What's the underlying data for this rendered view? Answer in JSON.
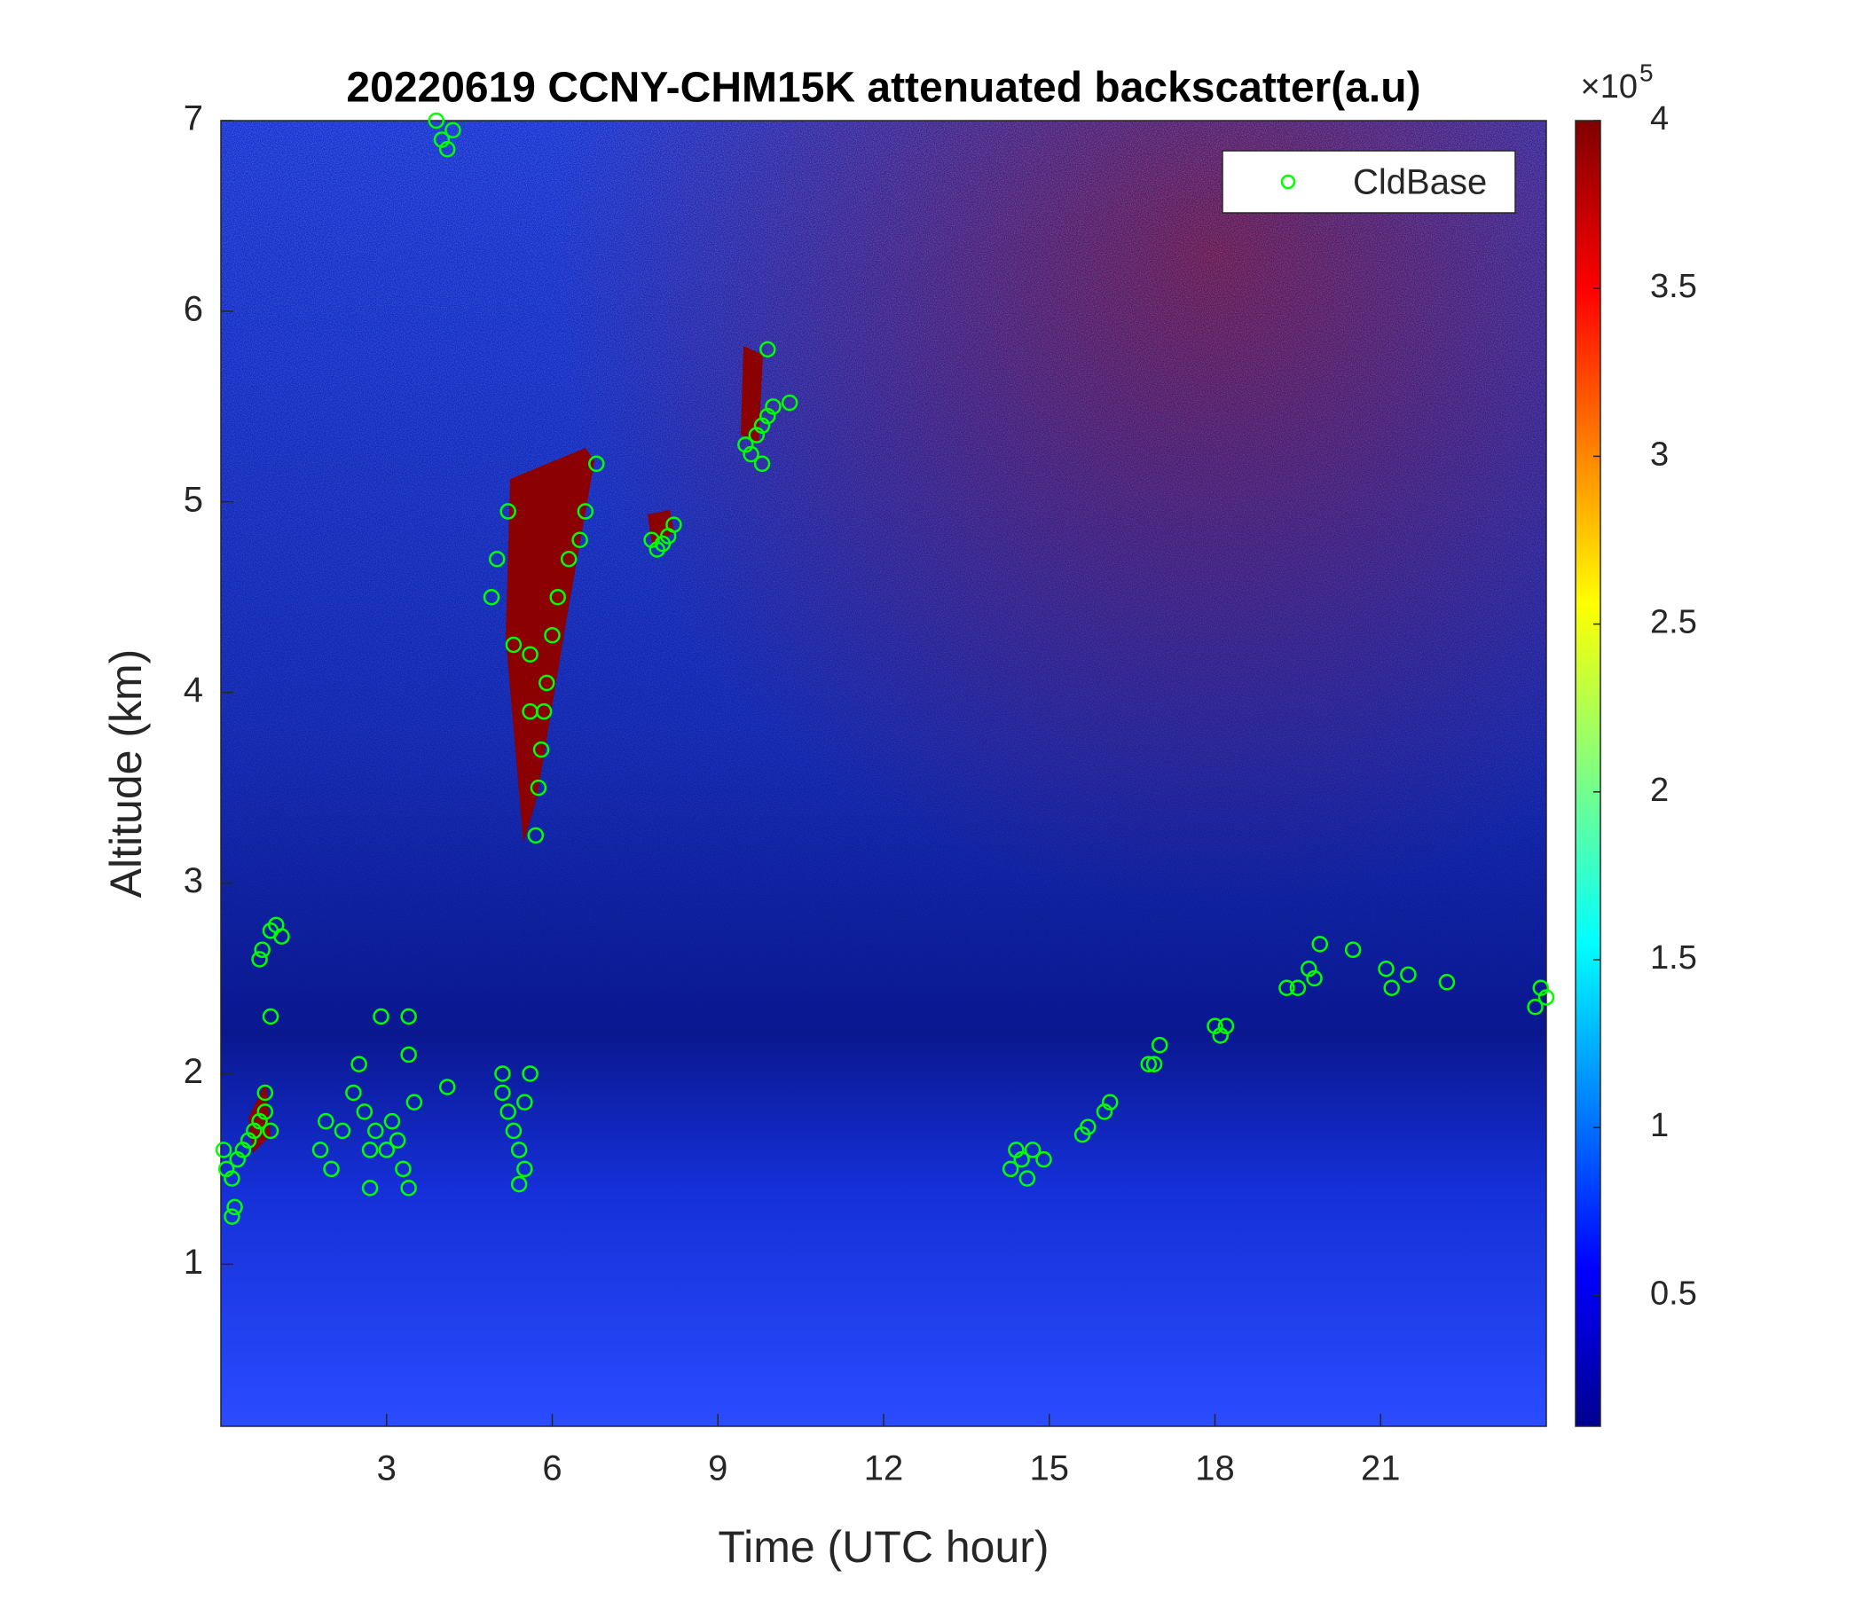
{
  "chart_data": {
    "type": "scatter",
    "title": "20220619 CCNY-CHM15K attenuated backscatter(a.u)",
    "x_label": "Time (UTC hour)",
    "y_label": "Altitude (km)",
    "xlim": [
      0,
      24
    ],
    "xticks": [
      3,
      6,
      9,
      12,
      15,
      18,
      21
    ],
    "ylim": [
      0.15,
      7
    ],
    "yticks": [
      1,
      2,
      3,
      4,
      5,
      6,
      7
    ],
    "legend": "top-right",
    "series": [
      {
        "name": "CldBase",
        "color": "#00ff00",
        "x": [
          0.05,
          0.1,
          0.2,
          0.25,
          0.3,
          0.4,
          0.5,
          0.6,
          0.7,
          0.8,
          0.9,
          0.7,
          0.75,
          0.9,
          1.0,
          1.1,
          0.9,
          0.8,
          0.2,
          1.8,
          1.9,
          2.0,
          2.2,
          2.4,
          2.5,
          2.6,
          2.7,
          2.8,
          2.9,
          3.0,
          3.1,
          3.2,
          3.3,
          3.4,
          3.4,
          3.5,
          2.7,
          3.4,
          3.9,
          4.0,
          4.1,
          4.2,
          4.1,
          4.9,
          5.0,
          5.2,
          5.3,
          5.1,
          5.2,
          5.3,
          5.4,
          5.5,
          5.4,
          5.5,
          5.6,
          5.1,
          5.7,
          5.75,
          5.8,
          5.85,
          5.9,
          6.0,
          6.1,
          6.3,
          6.5,
          6.6,
          6.8,
          5.6,
          5.6,
          7.8,
          7.9,
          8.0,
          8.1,
          8.2,
          9.5,
          9.6,
          9.7,
          9.8,
          9.9,
          10.0,
          10.3,
          9.9,
          9.8,
          14.3,
          14.4,
          14.5,
          14.6,
          14.7,
          14.9,
          15.6,
          15.7,
          16.0,
          16.1,
          16.8,
          16.9,
          17.0,
          18.0,
          18.1,
          18.2,
          19.3,
          19.5,
          19.7,
          19.8,
          19.9,
          20.5,
          21.1,
          21.2,
          21.5,
          22.2,
          23.8,
          23.9,
          24.0
        ],
        "values": [
          1.6,
          1.5,
          1.45,
          1.3,
          1.55,
          1.6,
          1.65,
          1.7,
          1.75,
          1.8,
          1.7,
          2.6,
          2.65,
          2.75,
          2.78,
          2.72,
          2.3,
          1.9,
          1.25,
          1.6,
          1.75,
          1.5,
          1.7,
          1.9,
          2.05,
          1.8,
          1.6,
          1.7,
          2.3,
          1.6,
          1.75,
          1.65,
          1.5,
          1.4,
          2.1,
          1.85,
          1.4,
          2.3,
          7.0,
          6.9,
          6.85,
          6.95,
          1.93,
          4.5,
          4.7,
          4.95,
          4.25,
          1.9,
          1.8,
          1.7,
          1.6,
          1.5,
          1.42,
          1.85,
          2.0,
          2.0,
          3.25,
          3.5,
          3.7,
          3.9,
          4.05,
          4.3,
          4.5,
          4.7,
          4.8,
          4.95,
          5.2,
          3.9,
          4.2,
          4.8,
          4.75,
          4.78,
          4.82,
          4.88,
          5.3,
          5.25,
          5.35,
          5.4,
          5.45,
          5.5,
          5.52,
          5.8,
          5.2,
          1.5,
          1.6,
          1.55,
          1.45,
          1.6,
          1.55,
          1.68,
          1.72,
          1.8,
          1.85,
          2.05,
          2.05,
          2.15,
          2.25,
          2.2,
          2.25,
          2.45,
          2.45,
          2.55,
          2.5,
          2.68,
          2.65,
          2.55,
          2.45,
          2.52,
          2.48,
          2.35,
          2.45,
          2.4
        ]
      }
    ],
    "colorbar": {
      "lim": [
        0.11,
        4
      ],
      "ticks": [
        0.5,
        1,
        1.5,
        2,
        2.5,
        3,
        3.5,
        4
      ],
      "multiplier": "×10",
      "exponent": 5
    }
  }
}
